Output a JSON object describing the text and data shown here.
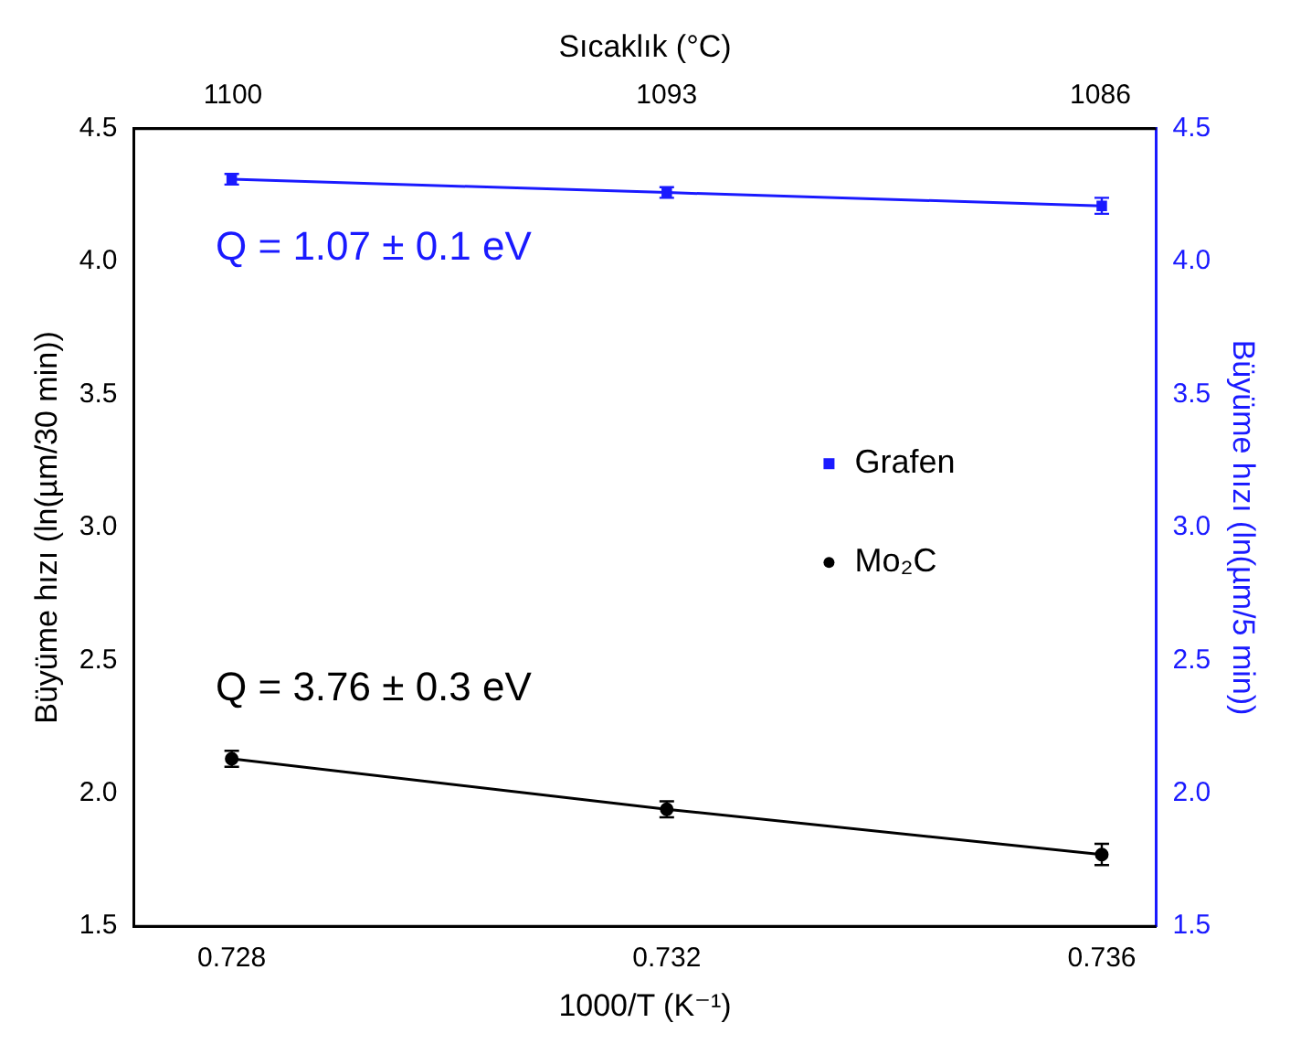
{
  "chart_data": {
    "type": "line",
    "xlabel": "1000/T (K⁻¹)",
    "ylabel": "Büyüme hızı (ln(µm/30 min))",
    "y2label": "Büyüme hızı (ln(µm/5 min))",
    "x2label": "Sıcaklık (°C)",
    "x": [
      0.728,
      0.732,
      0.736
    ],
    "series": [
      {
        "name": "Grafen",
        "color": "#1a1aff",
        "axis": "y2",
        "marker": "square",
        "values": [
          4.31,
          4.26,
          4.21
        ],
        "errors": [
          0.02,
          0.02,
          0.03
        ]
      },
      {
        "name": "Mo₂C",
        "color": "#000000",
        "marker": "circle",
        "values": [
          2.13,
          1.94,
          1.77
        ],
        "errors": [
          0.03,
          0.03,
          0.04
        ]
      }
    ],
    "annotations": [
      "Q = 1.07 ± 0.1 eV",
      "Q = 3.76 ± 0.3 eV"
    ],
    "xlim": [
      0.7271,
      0.7365
    ],
    "xticks": [
      0.728,
      0.732,
      0.736
    ],
    "x2lim": [
      1101.6,
      1085.1
    ],
    "x2ticks": [
      1100,
      1093,
      1086
    ],
    "ylim": [
      1.5,
      4.5
    ],
    "yticks": [
      1.5,
      {
        "value": 2,
        "label": "2.0"
      },
      2.5,
      {
        "value": 3,
        "label": "3.0"
      },
      3.5,
      {
        "value": 4,
        "label": "4.0"
      },
      4.5
    ],
    "y2lim": [
      1.5,
      4.5
    ],
    "y2ticks": [
      1.5,
      {
        "value": 2,
        "label": "2.0"
      },
      2.5,
      {
        "value": 3,
        "label": "3.0"
      },
      3.5,
      {
        "value": 4,
        "label": "4.0"
      },
      4.5
    ],
    "legend": "right",
    "grid": false,
    "line_style": "solid"
  }
}
